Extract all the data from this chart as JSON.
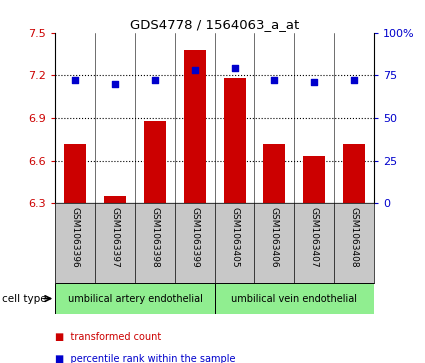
{
  "title": "GDS4778 / 1564063_a_at",
  "samples": [
    "GSM1063396",
    "GSM1063397",
    "GSM1063398",
    "GSM1063399",
    "GSM1063405",
    "GSM1063406",
    "GSM1063407",
    "GSM1063408"
  ],
  "transformed_counts": [
    6.72,
    6.35,
    6.88,
    7.38,
    7.18,
    6.72,
    6.63,
    6.72
  ],
  "percentile_ranks": [
    72,
    70,
    72,
    78,
    79,
    72,
    71,
    72
  ],
  "ylim_left": [
    6.3,
    7.5
  ],
  "ylim_right": [
    0,
    100
  ],
  "yticks_left": [
    6.3,
    6.6,
    6.9,
    7.2,
    7.5
  ],
  "yticks_right": [
    0,
    25,
    50,
    75,
    100
  ],
  "ytick_labels_left": [
    "6.3",
    "6.6",
    "6.9",
    "7.2",
    "7.5"
  ],
  "ytick_labels_right": [
    "0",
    "25",
    "50",
    "75",
    "100%"
  ],
  "bar_color": "#CC0000",
  "dot_color": "#0000CC",
  "bar_bottom": 6.3,
  "cell_type_groups": [
    {
      "label": "umbilical artery endothelial",
      "start": 0,
      "end": 3,
      "color": "#90EE90"
    },
    {
      "label": "umbilical vein endothelial",
      "start": 4,
      "end": 7,
      "color": "#90EE90"
    }
  ],
  "cell_type_label": "cell type",
  "legend_bar_label": "transformed count",
  "legend_dot_label": "percentile rank within the sample",
  "grid_yticks": [
    6.6,
    6.9,
    7.2
  ],
  "bg_color": "#FFFFFF",
  "label_bg_color": "#C8C8C8",
  "bar_width": 0.55
}
